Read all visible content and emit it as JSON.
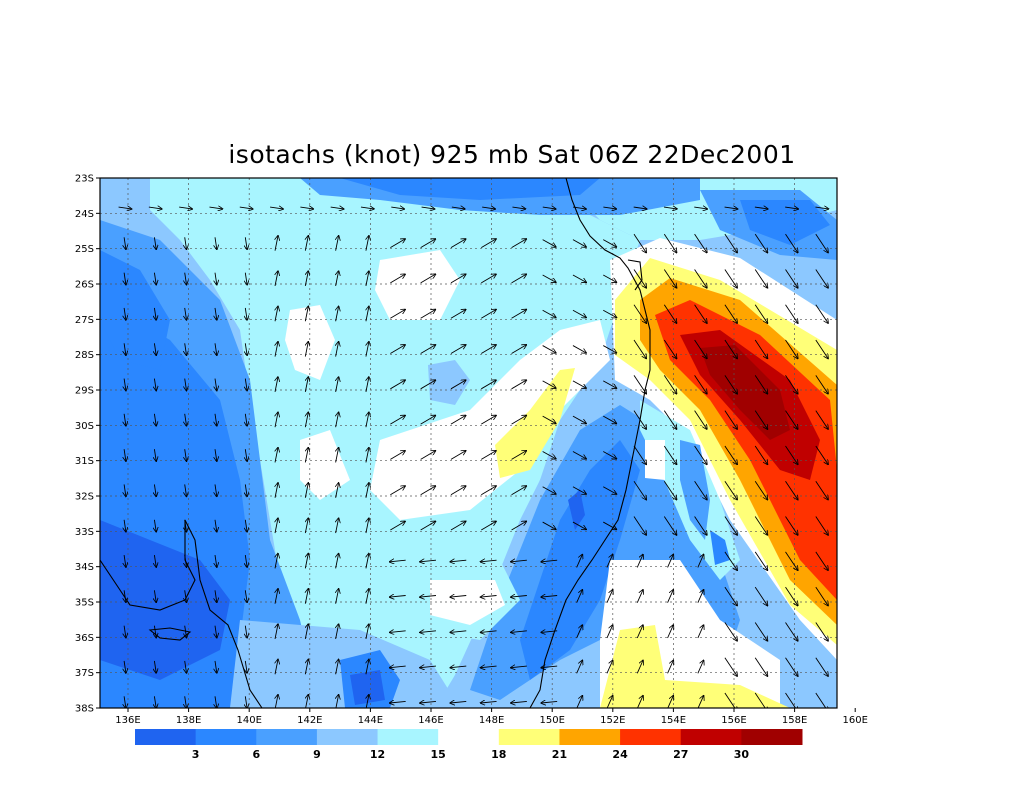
{
  "title": "isotachs (knot) 925 mb Sat 06Z 22Dec2001",
  "lat_labels": [
    "23S",
    "24S",
    "25S",
    "26S",
    "27S",
    "28S",
    "29S",
    "30S",
    "31S",
    "32S",
    "33S",
    "34S",
    "35S",
    "36S",
    "37S",
    "38S"
  ],
  "lon_labels": [
    "136E",
    "138E",
    "140E",
    "142E",
    "144E",
    "146E",
    "148E",
    "150E",
    "152E",
    "154E",
    "156E",
    "158E",
    "160E"
  ],
  "colorbar": {
    "labels": [
      "3",
      "6",
      "9",
      "12",
      "15",
      "18",
      "21",
      "24",
      "27",
      "30"
    ],
    "colors": [
      "#1f64f0",
      "#2b87ff",
      "#4aa0ff",
      "#8cc8ff",
      "#a8f5ff",
      "#ffffff",
      "#ffff78",
      "#ffa500",
      "#ff3200",
      "#c00000",
      "#a00000"
    ]
  },
  "palette": {
    "c1": "#1f64f0",
    "c2": "#2b87ff",
    "c3": "#4aa0ff",
    "c4": "#8cc8ff",
    "c5": "#a8f5ff",
    "c6": "#ffffff",
    "c7": "#ffff78",
    "c8": "#ffa500",
    "c9": "#ff3200",
    "c10": "#c00000",
    "c11": "#a00000"
  }
}
